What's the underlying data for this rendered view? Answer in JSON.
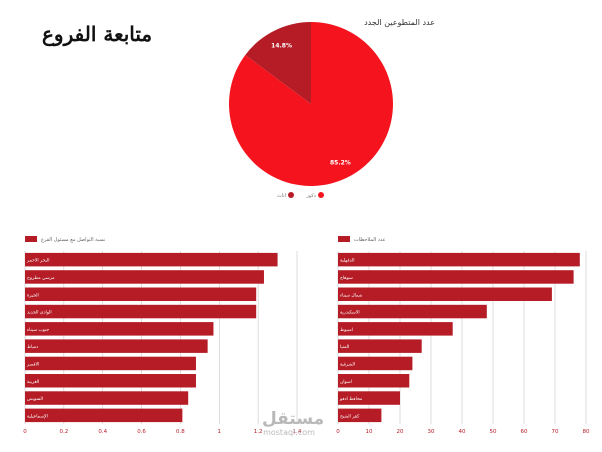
{
  "page": {
    "title": "متابعة الفروع",
    "watermark_logo": "مستقل",
    "watermark_url": "mostaql.com"
  },
  "colors": {
    "primary": "#f5141e",
    "dark": "#b51c26",
    "grid": "#c8c8c8",
    "axis_text": "#b51c26"
  },
  "chart_data": [
    {
      "type": "pie",
      "title": "عدد المتطوعين الجدد",
      "slices": [
        {
          "label": "ذكور",
          "value": 85.2,
          "display": "85.2%",
          "color": "#f5141e"
        },
        {
          "label": "اناث",
          "value": 14.8,
          "display": "14.8%",
          "color": "#b51c26"
        }
      ],
      "legend_position": "bottom"
    },
    {
      "type": "bar",
      "orientation": "horizontal",
      "legend": "نسبة التواصل مع مسئول الفرع",
      "categories": [
        "البحر الاحمر",
        "مرسي مطروح",
        "الجيزة",
        "الوادي الجديد",
        "جنوب سيناء",
        "دمياط",
        "الاقصر",
        "الغربية",
        "السويس",
        "الإسماعيلية"
      ],
      "values": [
        1.3,
        1.23,
        1.19,
        1.19,
        0.97,
        0.94,
        0.88,
        0.88,
        0.84,
        0.81
      ],
      "xlim": [
        0,
        1.4
      ],
      "ticks": [
        0,
        0.2,
        0.4,
        0.6,
        0.8,
        1,
        1.2,
        1.4
      ],
      "tick_labels": [
        "0",
        "0.2",
        "0.4",
        "0.6",
        "0.8",
        "1",
        "1.2",
        "1.4"
      ],
      "grid": true
    },
    {
      "type": "bar",
      "orientation": "horizontal",
      "legend": "عدد الملاحظات",
      "categories": [
        "الدقهلية",
        "سوهاج",
        "شمال سيناء",
        "الاسكندرية",
        "اسيوط",
        "المنيا",
        "الشرقية",
        "اسوان",
        "محافظ ادفو",
        "كفر الشيخ"
      ],
      "values": [
        78,
        76,
        69,
        48,
        37,
        27,
        24,
        23,
        20,
        14
      ],
      "xlim": [
        0,
        80
      ],
      "ticks": [
        0,
        10,
        20,
        30,
        40,
        50,
        60,
        70,
        80
      ],
      "tick_labels": [
        "0",
        "10",
        "20",
        "30",
        "40",
        "50",
        "60",
        "70",
        "80"
      ],
      "grid": true
    }
  ]
}
